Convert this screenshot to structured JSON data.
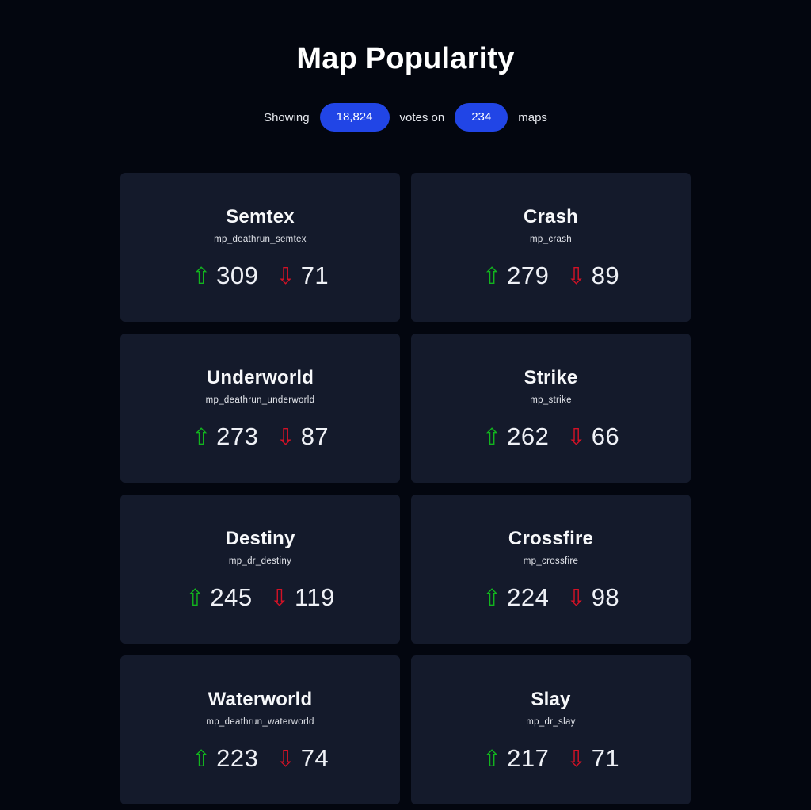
{
  "page": {
    "title": "Map Popularity"
  },
  "subtitle": {
    "prefix": "Showing",
    "votes_count": "18,824",
    "middle": "votes on",
    "maps_count": "234",
    "suffix": "maps"
  },
  "icons": {
    "upvote": "⇧",
    "downvote": "⇩"
  },
  "colors": {
    "background": "#03060f",
    "card": "#141a2b",
    "badge_blue": "#2145e6",
    "upvote_green": "#12b41e",
    "downvote_red": "#d21226"
  },
  "maps": [
    {
      "name": "Semtex",
      "code": "mp_deathrun_semtex",
      "upvotes": "309",
      "downvotes": "71"
    },
    {
      "name": "Crash",
      "code": "mp_crash",
      "upvotes": "279",
      "downvotes": "89"
    },
    {
      "name": "Underworld",
      "code": "mp_deathrun_underworld",
      "upvotes": "273",
      "downvotes": "87"
    },
    {
      "name": "Strike",
      "code": "mp_strike",
      "upvotes": "262",
      "downvotes": "66"
    },
    {
      "name": "Destiny",
      "code": "mp_dr_destiny",
      "upvotes": "245",
      "downvotes": "119"
    },
    {
      "name": "Crossfire",
      "code": "mp_crossfire",
      "upvotes": "224",
      "downvotes": "98"
    },
    {
      "name": "Waterworld",
      "code": "mp_deathrun_waterworld",
      "upvotes": "223",
      "downvotes": "74"
    },
    {
      "name": "Slay",
      "code": "mp_dr_slay",
      "upvotes": "217",
      "downvotes": "71"
    }
  ]
}
